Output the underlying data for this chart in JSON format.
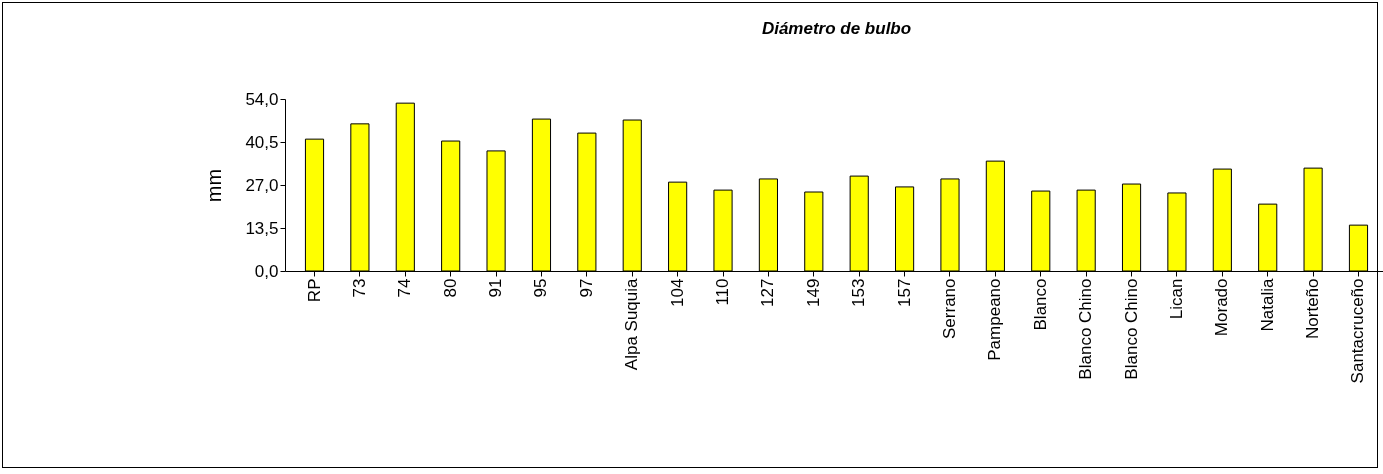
{
  "chart_data": {
    "type": "bar",
    "title": "Diámetro de bulbo",
    "ylabel": "mm",
    "categories": [
      "RP",
      "73",
      "74",
      "80",
      "91",
      "95",
      "97",
      "Alpa Suquia",
      "104",
      "110",
      "127",
      "149",
      "153",
      "157",
      "Serrano",
      "Pampeano",
      "Blanco",
      "Blanco Chino",
      "Blanco Chino",
      "Lican",
      "Morado",
      "Natalia",
      "Norteño",
      "Santacruceño"
    ],
    "values": [
      41.4,
      46.2,
      52.7,
      40.8,
      37.7,
      47.7,
      43.3,
      47.4,
      27.9,
      25.4,
      28.9,
      24.8,
      29.8,
      26.4,
      28.9,
      34.5,
      25.1,
      25.4,
      27.3,
      24.5,
      32.0,
      21.0,
      32.3,
      14.4
    ],
    "color": "#ffff00",
    "ylim": [
      0,
      54
    ],
    "yticks": [
      {
        "value": 0,
        "label": "0,0"
      },
      {
        "value": 13.5,
        "label": "13,5"
      },
      {
        "value": 27,
        "label": "27,0"
      },
      {
        "value": 40.5,
        "label": "40,5"
      },
      {
        "value": 54,
        "label": "54,0"
      }
    ],
    "grid": false
  }
}
